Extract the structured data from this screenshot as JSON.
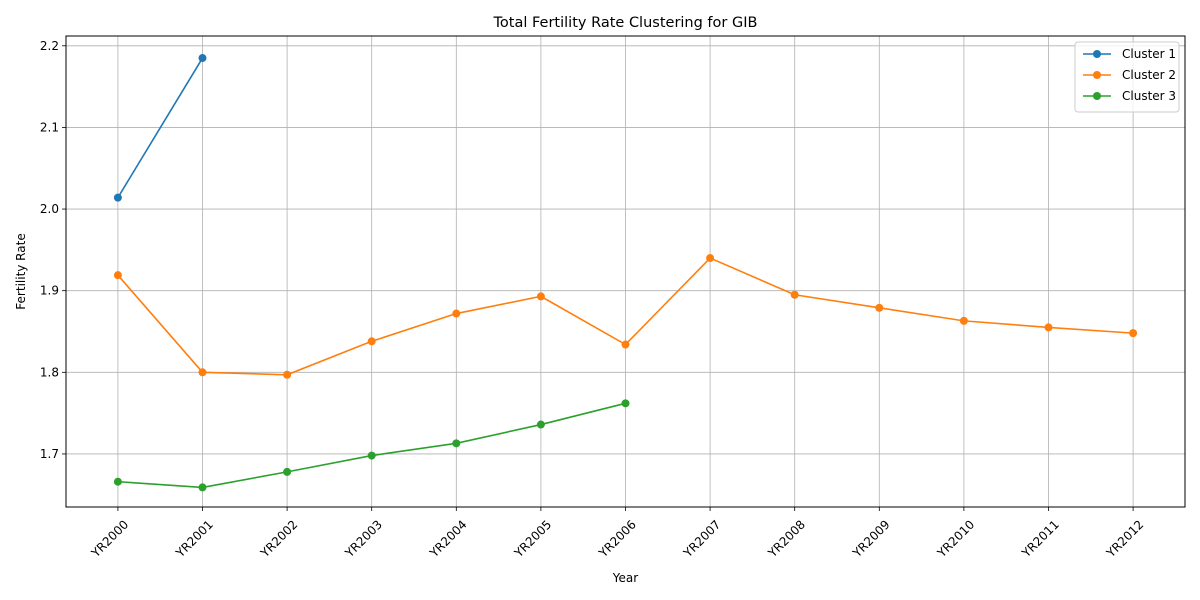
{
  "chart_data": {
    "type": "line",
    "title": "Total Fertility Rate Clustering for GIB",
    "xlabel": "Year",
    "ylabel": "Fertility Rate",
    "categories": [
      "YR2000",
      "YR2001",
      "YR2002",
      "YR2003",
      "YR2004",
      "YR2005",
      "YR2006",
      "YR2007",
      "YR2008",
      "YR2009",
      "YR2010",
      "YR2011",
      "YR2012"
    ],
    "ylim": [
      1.635,
      2.212
    ],
    "yticks": [
      "1.7",
      "1.8",
      "1.9",
      "2.0",
      "2.1",
      "2.2"
    ],
    "grid": true,
    "legend_position": "top-right",
    "series": [
      {
        "name": "Cluster 1",
        "color": "#1f77b4",
        "values": [
          2.014,
          2.185,
          null,
          null,
          null,
          null,
          null,
          null,
          null,
          null,
          null,
          null,
          null
        ]
      },
      {
        "name": "Cluster 2",
        "color": "#ff7f0e",
        "values": [
          1.919,
          1.8,
          1.797,
          1.838,
          1.872,
          1.893,
          1.834,
          1.94,
          1.895,
          1.879,
          1.863,
          1.855,
          1.848
        ]
      },
      {
        "name": "Cluster 3",
        "color": "#2ca02c",
        "values": [
          1.666,
          1.659,
          1.678,
          1.698,
          1.713,
          1.736,
          1.762,
          null,
          null,
          null,
          null,
          null,
          null
        ]
      }
    ]
  }
}
